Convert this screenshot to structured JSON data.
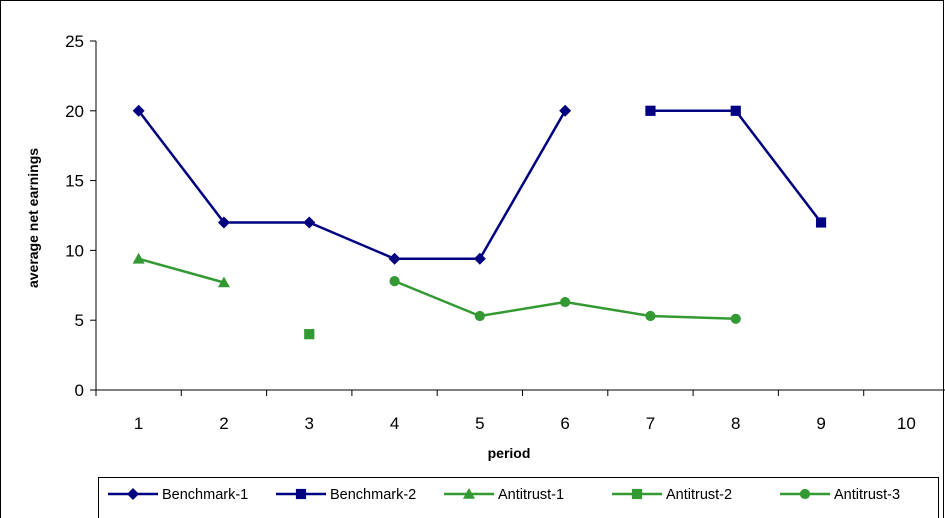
{
  "chart_data": {
    "type": "line",
    "title": "",
    "xlabel": "period",
    "ylabel": "average net earnings",
    "x": [
      1,
      2,
      3,
      4,
      5,
      6,
      7,
      8,
      9,
      10
    ],
    "x_tick_labels": [
      "1",
      "2",
      "3",
      "4",
      "5",
      "6",
      "7",
      "8",
      "9",
      "10"
    ],
    "ylim": [
      0,
      25
    ],
    "y_ticks": [
      0,
      5,
      10,
      15,
      20,
      25
    ],
    "y_tick_labels": [
      "0",
      "5",
      "10",
      "15",
      "20",
      "25"
    ],
    "grid": false,
    "legend_position": "bottom",
    "series": [
      {
        "name": "Benchmark-1",
        "color": "#000080",
        "marker": "diamond",
        "points": [
          [
            1,
            20
          ],
          [
            2,
            12
          ],
          [
            3,
            12
          ],
          [
            4,
            9.4
          ],
          [
            5,
            9.4
          ],
          [
            6,
            20
          ]
        ]
      },
      {
        "name": "Benchmark-2",
        "color": "#000080",
        "marker": "square",
        "points": [
          [
            7,
            20
          ],
          [
            8,
            20
          ],
          [
            9,
            12
          ]
        ]
      },
      {
        "name": "Antitrust-1",
        "color": "#339933",
        "marker": "triangle",
        "points": [
          [
            1,
            9.4
          ],
          [
            2,
            7.7
          ]
        ]
      },
      {
        "name": "Antitrust-2",
        "color": "#339933",
        "marker": "square",
        "points": [
          [
            3,
            4.0
          ]
        ]
      },
      {
        "name": "Antitrust-3",
        "color": "#339933",
        "marker": "circle",
        "points": [
          [
            4,
            7.8
          ],
          [
            5,
            5.3
          ],
          [
            6,
            6.3
          ],
          [
            7,
            5.3
          ],
          [
            8,
            5.1
          ]
        ]
      }
    ]
  }
}
